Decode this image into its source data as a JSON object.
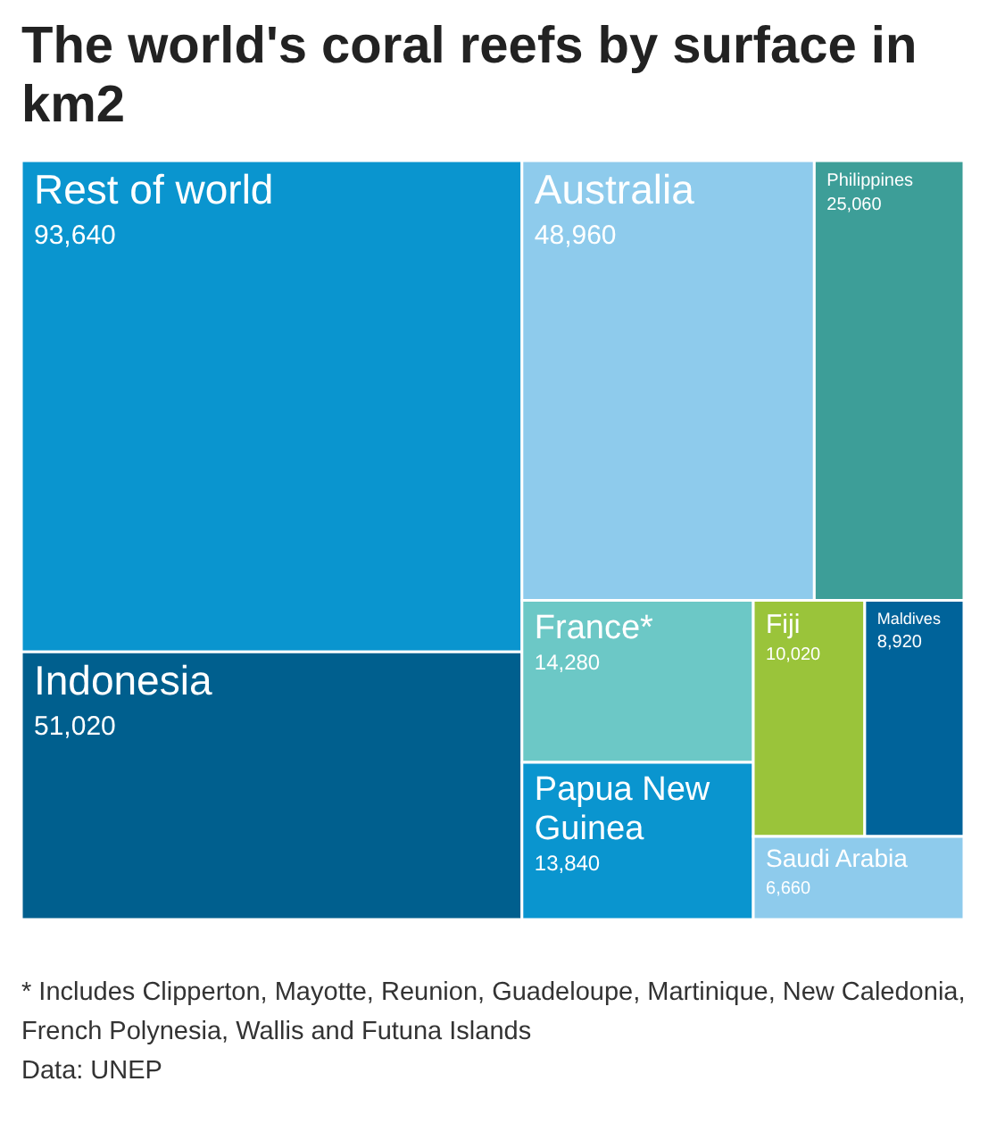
{
  "chart_data": {
    "type": "other",
    "title": "The world's coral reefs by surface in km2",
    "categories": [
      "Rest of world",
      "Indonesia",
      "Australia",
      "Philippines",
      "France*",
      "Papua New Guinea",
      "Fiji",
      "Maldives",
      "Saudi Arabia"
    ],
    "values": [
      93640,
      51020,
      48960,
      25060,
      14280,
      13840,
      10020,
      8920,
      6660
    ],
    "value_labels": [
      "93,640",
      "51,020",
      "48,960",
      "25,060",
      "14,280",
      "13,840",
      "10,020",
      "8,920",
      "6,660"
    ],
    "colors": [
      "#0a95cf",
      "#005f8e",
      "#8ecbec",
      "#3d9e98",
      "#6cc8c6",
      "#0a95cf",
      "#9ac43a",
      "#00639a",
      "#8ecbec"
    ],
    "annotations": [
      "* Includes Clipperton, Mayotte, Reunion, Guadeloupe, Martinique, New Caledonia, French Polynesia, Wallis and Futuna Islands",
      "Data: UNEP"
    ]
  }
}
